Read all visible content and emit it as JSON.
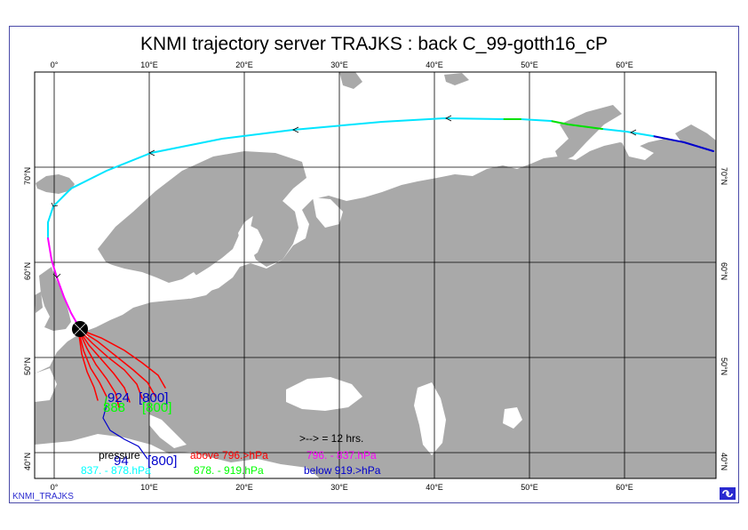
{
  "title": "KNMI trajectory server TRAJKS : back C_99-gotth16_cP",
  "footer_label": "KNMI_TRAJKS",
  "logo_icon": "knmi-logo-icon",
  "map": {
    "lon_ticks_top": [
      "0°",
      "10°E",
      "20°E",
      "30°E",
      "40°E",
      "50°E",
      "60°E"
    ],
    "lon_ticks_bottom": [
      "0°",
      "10°E",
      "20°E",
      "30°E",
      "40°E",
      "50°E",
      "60°E"
    ],
    "lat_ticks_left": [
      "70°N",
      "60°N",
      "50°N",
      "40°N"
    ],
    "lat_ticks_right": [
      "70°N",
      "60°N",
      "50°N",
      "40°N"
    ],
    "land_color": "#a9a9a9",
    "sea_color": "#ffffff",
    "grid": true
  },
  "plot_labels": {
    "label1_a": "924",
    "label1_b": "[800]",
    "label2_a": "888",
    "label2_b": "[800]",
    "label3_a": "94",
    "label3_b": "[800]"
  },
  "legend": {
    "arrow_note": ">--> = 12 hrs.",
    "title": "pressure",
    "items": [
      {
        "text": "above 796.>hPa",
        "color": "#ff0000"
      },
      {
        "text": "796. -  837.hPa",
        "color": "#ff00ff"
      },
      {
        "text": "837. -  878.hPa",
        "color": "#00ffff"
      },
      {
        "text": "878. -  919.hPa",
        "color": "#00ff00"
      },
      {
        "text": "below 919.>hPa",
        "color": "#0000cc"
      }
    ]
  },
  "colors": {
    "above_796": "#ff0000",
    "796_837": "#ff00ff",
    "837_878": "#00ffff",
    "878_919": "#00ff00",
    "below_919": "#0000cc"
  }
}
